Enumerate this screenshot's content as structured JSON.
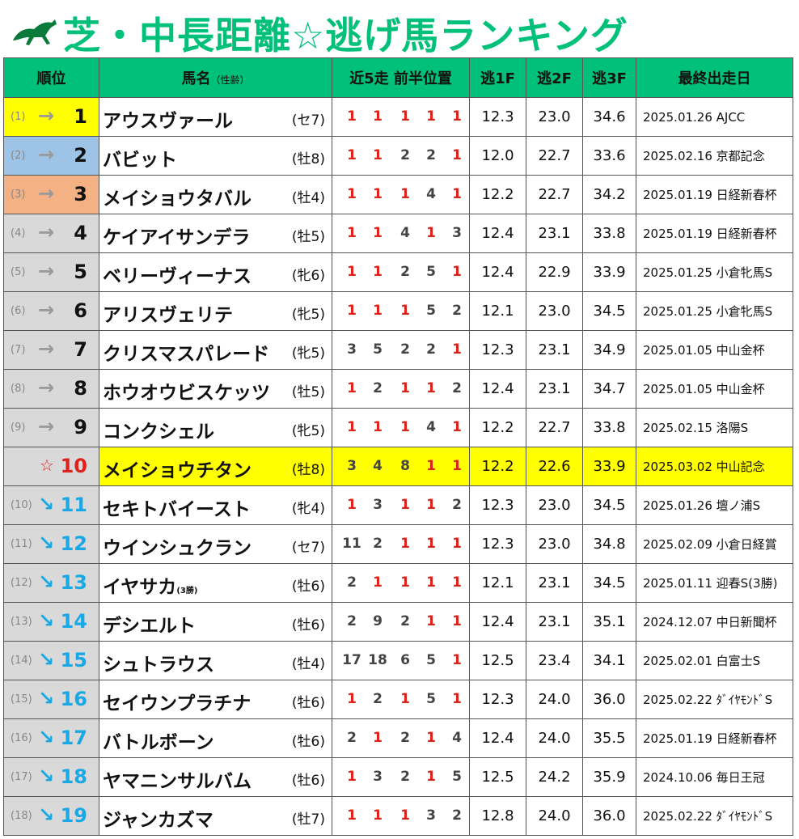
{
  "title": "芝・中長距離☆逃げ馬ランキング",
  "header": {
    "rank": "順位",
    "horse": "馬名",
    "horse_sub": "（性齢）",
    "positions": "近5走 前半位置",
    "f1": "逃1F",
    "f2": "逃2F",
    "f3": "逃3F",
    "last": "最終出走日"
  },
  "colors": {
    "accent": "#00c07a",
    "red": "#e0201a",
    "down": "#18a8e6",
    "gold": "#ffff00",
    "silver": "#9dc3e6",
    "bronze": "#f4b183"
  },
  "rows": [
    {
      "prev": "(1)",
      "arrow": "→",
      "rank": "1",
      "name": "アウスヴァール",
      "name_sub": "",
      "sex": "(セ7)",
      "pos": [
        "1",
        "1",
        "1",
        "1",
        "1"
      ],
      "f1": "12.3",
      "f2": "23.0",
      "f3": "34.6",
      "last": "2025.01.26 AJCC",
      "rank_bg": "#ffff00",
      "trend": "same"
    },
    {
      "prev": "(2)",
      "arrow": "→",
      "rank": "2",
      "name": "バビット",
      "name_sub": "",
      "sex": "(牡8)",
      "pos": [
        "1",
        "1",
        "2",
        "2",
        "1"
      ],
      "f1": "12.0",
      "f2": "22.7",
      "f3": "33.6",
      "last": "2025.02.16 京都記念",
      "rank_bg": "#9dc3e6",
      "trend": "same"
    },
    {
      "prev": "(3)",
      "arrow": "→",
      "rank": "3",
      "name": "メイショウタバル",
      "name_sub": "",
      "sex": "(牡4)",
      "pos": [
        "1",
        "1",
        "1",
        "4",
        "1"
      ],
      "f1": "12.2",
      "f2": "22.7",
      "f3": "34.2",
      "last": "2025.01.19 日経新春杯",
      "rank_bg": "#f4b183",
      "trend": "same"
    },
    {
      "prev": "(4)",
      "arrow": "→",
      "rank": "4",
      "name": "ケイアイサンデラ",
      "name_sub": "",
      "sex": "(牡5)",
      "pos": [
        "1",
        "1",
        "4",
        "1",
        "3"
      ],
      "f1": "12.4",
      "f2": "23.1",
      "f3": "33.8",
      "last": "2025.01.19 日経新春杯",
      "rank_bg": "#d9d9d9",
      "trend": "same"
    },
    {
      "prev": "(5)",
      "arrow": "→",
      "rank": "5",
      "name": "ベリーヴィーナス",
      "name_sub": "",
      "sex": "(牝6)",
      "pos": [
        "1",
        "1",
        "2",
        "5",
        "1"
      ],
      "f1": "12.4",
      "f2": "22.9",
      "f3": "33.9",
      "last": "2025.01.25 小倉牝馬S",
      "rank_bg": "#d9d9d9",
      "trend": "same"
    },
    {
      "prev": "(6)",
      "arrow": "→",
      "rank": "6",
      "name": "アリスヴェリテ",
      "name_sub": "",
      "sex": "(牝5)",
      "pos": [
        "1",
        "1",
        "1",
        "5",
        "2"
      ],
      "f1": "12.1",
      "f2": "23.0",
      "f3": "34.5",
      "last": "2025.01.25 小倉牝馬S",
      "rank_bg": "#d9d9d9",
      "trend": "same"
    },
    {
      "prev": "(7)",
      "arrow": "→",
      "rank": "7",
      "name": "クリスマスパレード",
      "name_sub": "",
      "sex": "(牝5)",
      "pos": [
        "3",
        "5",
        "2",
        "2",
        "1"
      ],
      "f1": "12.3",
      "f2": "23.1",
      "f3": "34.9",
      "last": "2025.01.05 中山金杯",
      "rank_bg": "#d9d9d9",
      "trend": "same"
    },
    {
      "prev": "(8)",
      "arrow": "→",
      "rank": "8",
      "name": "ホウオウビスケッツ",
      "name_sub": "",
      "sex": "(牡5)",
      "pos": [
        "1",
        "2",
        "1",
        "1",
        "2"
      ],
      "f1": "12.4",
      "f2": "23.1",
      "f3": "34.7",
      "last": "2025.01.05 中山金杯",
      "rank_bg": "#d9d9d9",
      "trend": "same"
    },
    {
      "prev": "(9)",
      "arrow": "→",
      "rank": "9",
      "name": "コンクシェル",
      "name_sub": "",
      "sex": "(牝5)",
      "pos": [
        "1",
        "1",
        "1",
        "4",
        "1"
      ],
      "f1": "12.2",
      "f2": "22.7",
      "f3": "33.8",
      "last": "2025.02.15 洛陽S",
      "rank_bg": "#d9d9d9",
      "trend": "same"
    },
    {
      "prev": "",
      "arrow": "☆",
      "rank": "10",
      "name": "メイショウチタン",
      "name_sub": "",
      "sex": "(牡8)",
      "pos": [
        "3",
        "4",
        "8",
        "1",
        "1"
      ],
      "f1": "12.2",
      "f2": "22.6",
      "f3": "33.9",
      "last": "2025.03.02 中山記念",
      "rank_bg": "#d9d9d9",
      "trend": "star",
      "highlight": true
    },
    {
      "prev": "(10)",
      "arrow": "↘",
      "rank": "11",
      "name": "セキトバイースト",
      "name_sub": "",
      "sex": "(牝4)",
      "pos": [
        "1",
        "3",
        "1",
        "1",
        "2"
      ],
      "f1": "12.3",
      "f2": "23.0",
      "f3": "34.5",
      "last": "2025.01.26 壇ノ浦S",
      "rank_bg": "#d9d9d9",
      "trend": "down"
    },
    {
      "prev": "(11)",
      "arrow": "↘",
      "rank": "12",
      "name": "ウインシュクラン",
      "name_sub": "",
      "sex": "(セ7)",
      "pos": [
        "11",
        "2",
        "1",
        "1",
        "1"
      ],
      "f1": "12.3",
      "f2": "23.0",
      "f3": "34.8",
      "last": "2025.02.09 小倉日経賞",
      "rank_bg": "#d9d9d9",
      "trend": "down"
    },
    {
      "prev": "(12)",
      "arrow": "↘",
      "rank": "13",
      "name": "イヤサカ",
      "name_sub": "(3勝)",
      "sex": "(牡6)",
      "pos": [
        "2",
        "1",
        "1",
        "1",
        "1"
      ],
      "f1": "12.1",
      "f2": "23.1",
      "f3": "34.5",
      "last": "2025.01.11 迎春S(3勝)",
      "rank_bg": "#d9d9d9",
      "trend": "down"
    },
    {
      "prev": "(13)",
      "arrow": "↘",
      "rank": "14",
      "name": "デシエルト",
      "name_sub": "",
      "sex": "(牡6)",
      "pos": [
        "2",
        "9",
        "2",
        "1",
        "1"
      ],
      "f1": "12.4",
      "f2": "23.1",
      "f3": "35.1",
      "last": "2024.12.07 中日新聞杯",
      "rank_bg": "#d9d9d9",
      "trend": "down"
    },
    {
      "prev": "(14)",
      "arrow": "↘",
      "rank": "15",
      "name": "シュトラウス",
      "name_sub": "",
      "sex": "(牡4)",
      "pos": [
        "17",
        "18",
        "6",
        "5",
        "1"
      ],
      "f1": "12.5",
      "f2": "23.4",
      "f3": "34.1",
      "last": "2025.02.01 白富士S",
      "rank_bg": "#d9d9d9",
      "trend": "down"
    },
    {
      "prev": "(15)",
      "arrow": "↘",
      "rank": "16",
      "name": "セイウンプラチナ",
      "name_sub": "",
      "sex": "(牡6)",
      "pos": [
        "1",
        "2",
        "1",
        "5",
        "1"
      ],
      "f1": "12.3",
      "f2": "24.0",
      "f3": "36.0",
      "last": "2025.02.22 ﾀﾞｲﾔﾓﾝﾄﾞS",
      "rank_bg": "#d9d9d9",
      "trend": "down"
    },
    {
      "prev": "(16)",
      "arrow": "↘",
      "rank": "17",
      "name": "バトルボーン",
      "name_sub": "",
      "sex": "(牡6)",
      "pos": [
        "2",
        "1",
        "2",
        "1",
        "4"
      ],
      "f1": "12.4",
      "f2": "24.0",
      "f3": "35.5",
      "last": "2025.01.19 日経新春杯",
      "rank_bg": "#d9d9d9",
      "trend": "down"
    },
    {
      "prev": "(17)",
      "arrow": "↘",
      "rank": "18",
      "name": "ヤマニンサルバム",
      "name_sub": "",
      "sex": "(牡6)",
      "pos": [
        "1",
        "3",
        "2",
        "1",
        "5"
      ],
      "f1": "12.5",
      "f2": "24.2",
      "f3": "35.9",
      "last": "2024.10.06 毎日王冠",
      "rank_bg": "#d9d9d9",
      "trend": "down"
    },
    {
      "prev": "(18)",
      "arrow": "↘",
      "rank": "19",
      "name": "ジャンカズマ",
      "name_sub": "",
      "sex": "(牡7)",
      "pos": [
        "1",
        "1",
        "1",
        "3",
        "2"
      ],
      "f1": "12.8",
      "f2": "24.0",
      "f3": "36.0",
      "last": "2025.02.22 ﾀﾞｲﾔﾓﾝﾄﾞS",
      "rank_bg": "#d9d9d9",
      "trend": "down"
    }
  ]
}
